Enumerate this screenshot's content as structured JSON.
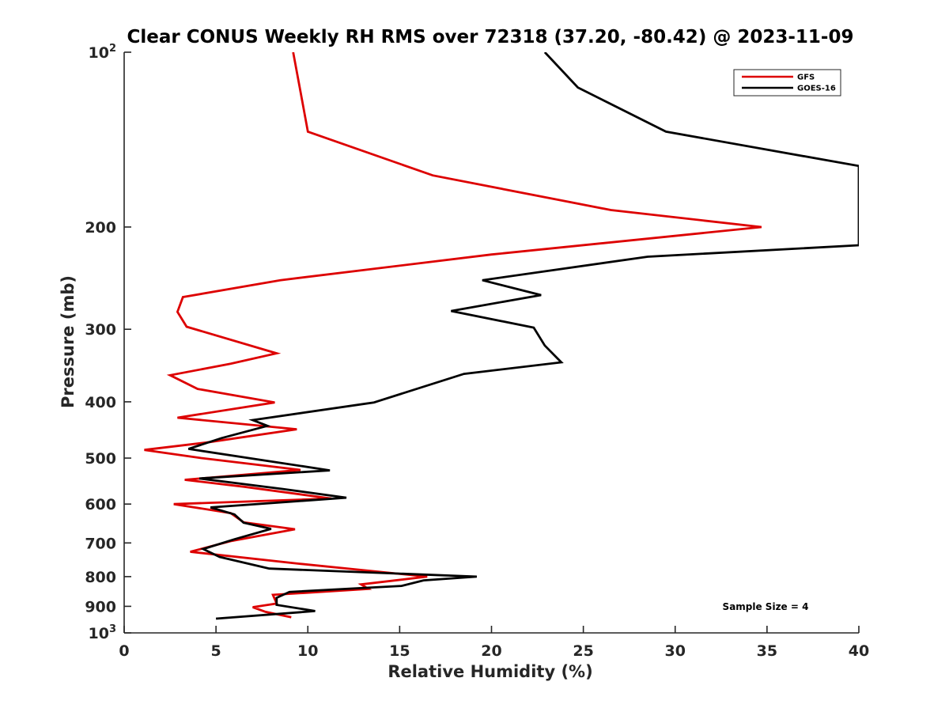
{
  "chart_data": {
    "type": "line",
    "title": "Clear CONUS Weekly RH RMS over 72318 (37.20, -80.42) @ 2023-11-09",
    "xlabel": "Relative Humidity (%)",
    "ylabel": "Pressure (mb)",
    "xlim": [
      0,
      40
    ],
    "ylim": [
      100,
      1000
    ],
    "y_scale": "log",
    "y_reversed": true,
    "x_ticks": [
      "0",
      "5",
      "10",
      "15",
      "20",
      "25",
      "30",
      "35",
      "40"
    ],
    "y_ticks": [
      {
        "value": 100,
        "base": "10",
        "exp": "2"
      },
      {
        "value": 200,
        "label": "200"
      },
      {
        "value": 300,
        "label": "300"
      },
      {
        "value": 400,
        "label": "400"
      },
      {
        "value": 500,
        "label": "500"
      },
      {
        "value": 600,
        "label": "600"
      },
      {
        "value": 700,
        "label": "700"
      },
      {
        "value": 800,
        "label": "800"
      },
      {
        "value": 900,
        "label": "900"
      },
      {
        "value": 1000,
        "base": "10",
        "exp": "3"
      }
    ],
    "legend_position": "top-right",
    "grid": false,
    "annotation": "Sample Size = 4",
    "series": [
      {
        "name": "GFS",
        "color": "#dd0000",
        "points": [
          [
            9.2,
            100
          ],
          [
            9.6,
            117
          ],
          [
            10.0,
            137
          ],
          [
            16.8,
            163
          ],
          [
            26.5,
            187
          ],
          [
            34.7,
            200
          ],
          [
            20.0,
            223
          ],
          [
            8.5,
            247
          ],
          [
            3.2,
            264
          ],
          [
            2.9,
            280
          ],
          [
            3.4,
            297
          ],
          [
            8.3,
            330
          ],
          [
            5.8,
            344
          ],
          [
            2.5,
            360
          ],
          [
            4.0,
            380
          ],
          [
            8.2,
            401
          ],
          [
            2.9,
            426
          ],
          [
            9.4,
            446
          ],
          [
            4.5,
            470
          ],
          [
            1.1,
            484
          ],
          [
            4.2,
            500
          ],
          [
            9.6,
            524
          ],
          [
            3.3,
            545
          ],
          [
            6.5,
            560
          ],
          [
            11.3,
            587
          ],
          [
            2.7,
            600
          ],
          [
            5.8,
            622
          ],
          [
            6.5,
            645
          ],
          [
            9.3,
            663
          ],
          [
            5.8,
            695
          ],
          [
            3.6,
            725
          ],
          [
            9.5,
            760
          ],
          [
            16.5,
            800
          ],
          [
            12.9,
            825
          ],
          [
            13.3,
            840
          ],
          [
            8.1,
            860
          ],
          [
            8.3,
            890
          ],
          [
            7.0,
            903
          ],
          [
            7.7,
            920
          ],
          [
            9.1,
            940
          ]
        ]
      },
      {
        "name": "GOES-16",
        "color": "#000000",
        "points": [
          [
            22.9,
            100
          ],
          [
            24.7,
            115
          ],
          [
            29.5,
            137
          ],
          [
            40.0,
            157
          ],
          [
            40.0,
            215
          ],
          [
            28.5,
            225
          ],
          [
            19.5,
            247
          ],
          [
            22.7,
            262
          ],
          [
            17.8,
            279
          ],
          [
            22.3,
            298
          ],
          [
            22.9,
            320
          ],
          [
            23.8,
            342
          ],
          [
            18.5,
            358
          ],
          [
            13.6,
            401
          ],
          [
            7.0,
            430
          ],
          [
            7.8,
            440
          ],
          [
            5.3,
            462
          ],
          [
            3.5,
            482
          ],
          [
            7.7,
            505
          ],
          [
            11.2,
            525
          ],
          [
            4.1,
            542
          ],
          [
            8.6,
            565
          ],
          [
            12.1,
            585
          ],
          [
            4.7,
            608
          ],
          [
            6.0,
            625
          ],
          [
            6.5,
            646
          ],
          [
            8.0,
            662
          ],
          [
            6.0,
            690
          ],
          [
            4.3,
            717
          ],
          [
            5.2,
            740
          ],
          [
            7.9,
            775
          ],
          [
            19.2,
            800
          ],
          [
            16.3,
            812
          ],
          [
            15.1,
            830
          ],
          [
            9.0,
            850
          ],
          [
            8.3,
            870
          ],
          [
            8.3,
            895
          ],
          [
            10.4,
            917
          ],
          [
            5.0,
            945
          ]
        ]
      }
    ]
  }
}
